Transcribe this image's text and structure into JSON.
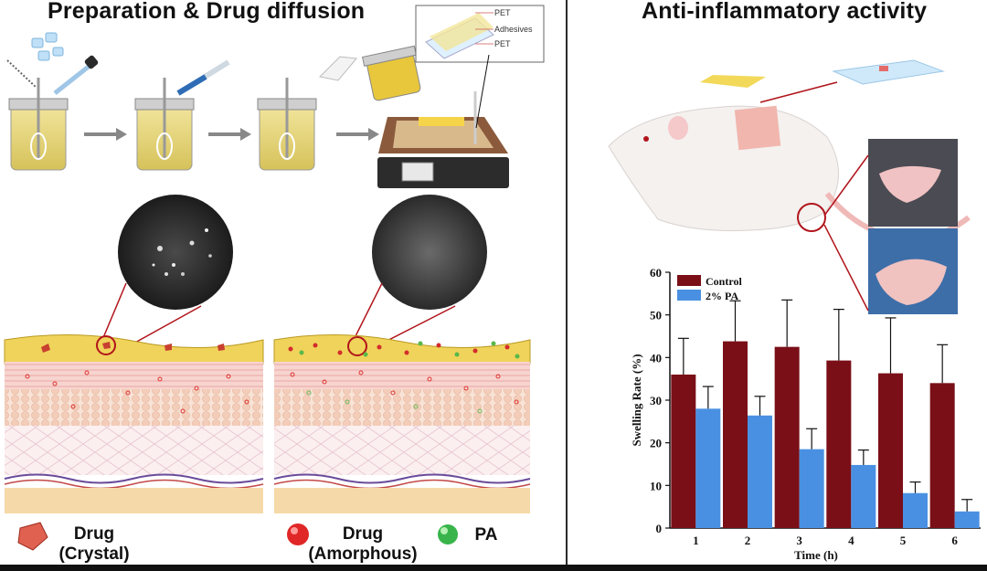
{
  "left_panel": {
    "title": "Preparation & Drug diffusion",
    "layer_labels": [
      "PET",
      "Adhesives",
      "PET"
    ]
  },
  "right_panel": {
    "title": "Anti-inflammatory activity"
  },
  "legend": {
    "crystal_line1": "Drug",
    "crystal_line2": "(Crystal)",
    "amorphous_line1": "Drug",
    "amorphous_line2": "(Amorphous)",
    "pa": "PA"
  },
  "colors": {
    "control": "#7a0f17",
    "pa": "#4a90e2"
  },
  "chart_data": {
    "type": "bar",
    "xlabel": "Time (h)",
    "ylabel": "Swelling Rate (%)",
    "ylim": [
      0,
      60
    ],
    "yticks": [
      0,
      10,
      20,
      30,
      40,
      50,
      60
    ],
    "categories": [
      "1",
      "2",
      "3",
      "4",
      "5",
      "6"
    ],
    "legend_position": "top-left",
    "series": [
      {
        "name": "Control",
        "values": [
          36,
          43.8,
          42.5,
          39.3,
          36.3,
          34
        ],
        "errors": [
          8.5,
          9.5,
          11,
          12,
          13,
          9
        ]
      },
      {
        "name": "2% PA",
        "values": [
          28,
          26.4,
          18.5,
          14.8,
          8.2,
          3.9
        ],
        "errors": [
          5.2,
          4.5,
          4.8,
          3.5,
          2.6,
          2.8
        ]
      }
    ]
  }
}
